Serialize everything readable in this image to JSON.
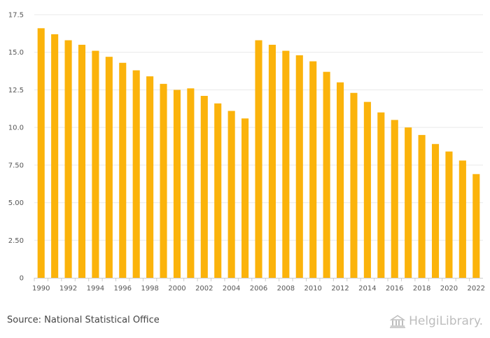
{
  "chart_data": {
    "type": "bar",
    "categories": [
      "1990",
      "1991",
      "1992",
      "1993",
      "1994",
      "1995",
      "1996",
      "1997",
      "1998",
      "1999",
      "2000",
      "2001",
      "2002",
      "2003",
      "2004",
      "2005",
      "2006",
      "2007",
      "2008",
      "2009",
      "2010",
      "2011",
      "2012",
      "2013",
      "2014",
      "2015",
      "2016",
      "2017",
      "2018",
      "2019",
      "2020",
      "2021",
      "2022"
    ],
    "values": [
      16.6,
      16.2,
      15.8,
      15.5,
      15.1,
      14.7,
      14.3,
      13.8,
      13.4,
      12.9,
      12.5,
      12.6,
      12.1,
      11.6,
      11.1,
      10.6,
      15.8,
      15.5,
      15.1,
      14.8,
      14.4,
      13.7,
      13.0,
      12.3,
      11.7,
      11.0,
      10.5,
      10.0,
      9.5,
      8.9,
      8.4,
      7.8,
      6.9
    ],
    "x_tick_labels": [
      "1990",
      "1992",
      "1994",
      "1996",
      "1998",
      "2000",
      "2002",
      "2004",
      "2006",
      "2008",
      "2010",
      "2012",
      "2014",
      "2016",
      "2018",
      "2020",
      "2022"
    ],
    "y_ticks": [
      0,
      2.5,
      5,
      7.5,
      10,
      12.5,
      15,
      17.5
    ],
    "y_tick_labels": [
      "0",
      "2.50",
      "5.00",
      "7.50",
      "10.0",
      "12.5",
      "15.0",
      "17.5"
    ],
    "ylim": [
      0,
      17.5
    ],
    "title": "",
    "xlabel": "",
    "ylabel": "",
    "grid": true,
    "bar_color": "#FBB30B",
    "grid_color": "#e9e9e9"
  },
  "footer": {
    "source": "Source: National Statistical Office",
    "brand": "HelgiLibrary."
  }
}
